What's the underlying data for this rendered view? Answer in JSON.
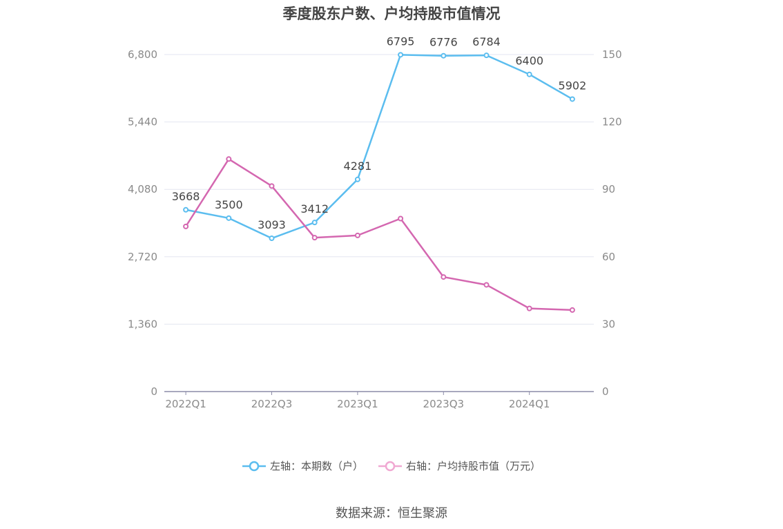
{
  "chart_data": {
    "type": "line",
    "title": "季度股东户数、户均持股市值情况",
    "categories": [
      "2022Q1",
      "2022Q2",
      "2022Q3",
      "2022Q4",
      "2023Q1",
      "2023Q2",
      "2023Q3",
      "2023Q4",
      "2024Q1",
      "2024Q2"
    ],
    "x_tick_labels": [
      "2022Q1",
      "2022Q3",
      "2023Q1",
      "2023Q3",
      "2024Q1"
    ],
    "left_axis": {
      "range": [
        0,
        6800
      ],
      "ticks": [
        "0",
        "1,360",
        "2,720",
        "4,080",
        "5,440",
        "6,800"
      ]
    },
    "right_axis": {
      "range": [
        0,
        150
      ],
      "ticks": [
        "0",
        "30",
        "60",
        "90",
        "120",
        "150"
      ]
    },
    "series": [
      {
        "name": "左轴：本期数（户）",
        "axis": "left",
        "color": "#5bbdef",
        "values": [
          3668,
          3500,
          3093,
          3412,
          4281,
          6795,
          6776,
          6784,
          6400,
          5902
        ],
        "labels": [
          "3668",
          "3500",
          "3093",
          "3412",
          "4281",
          "6795",
          "6776",
          "6784",
          "6400",
          "5902"
        ]
      },
      {
        "name": "右轴：户均持股市值（万元）",
        "axis": "right",
        "color": "#d467b0",
        "values": [
          73.5,
          103.5,
          91.5,
          68.5,
          69.5,
          77.0,
          51.0,
          47.5,
          37.0,
          36.3
        ]
      }
    ],
    "legend_position": "bottom",
    "grid": true
  },
  "source": "数据来源：恒生聚源"
}
